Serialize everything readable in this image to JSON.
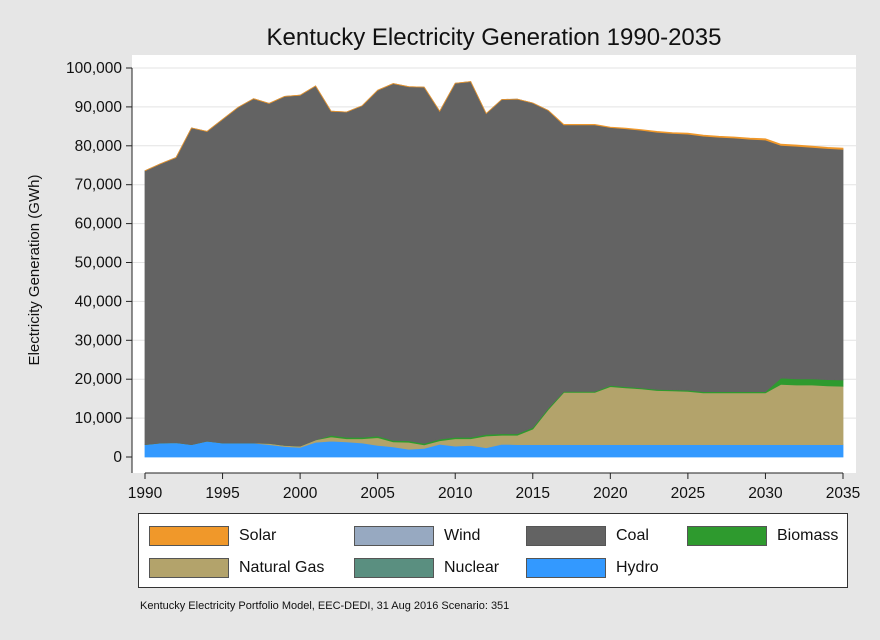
{
  "chart_data": {
    "type": "area",
    "stacked": true,
    "title": "Kentucky Electricity Generation 1990-2035",
    "xlabel": "",
    "ylabel": "Electricity Generation (GWh)",
    "xlim": [
      1990,
      2035
    ],
    "ylim": [
      0,
      100000
    ],
    "y_ticks": [
      0,
      10000,
      20000,
      30000,
      40000,
      50000,
      60000,
      70000,
      80000,
      90000,
      100000
    ],
    "y_tick_labels": [
      "0",
      "10,000",
      "20,000",
      "30,000",
      "40,000",
      "50,000",
      "60,000",
      "70,000",
      "80,000",
      "90,000",
      "100,000"
    ],
    "x_ticks": [
      1990,
      1995,
      2000,
      2005,
      2010,
      2015,
      2020,
      2025,
      2030,
      2035
    ],
    "x_tick_labels": [
      "1990",
      "1995",
      "2000",
      "2005",
      "2010",
      "2015",
      "2020",
      "2025",
      "2030",
      "2035"
    ],
    "grid": true,
    "x": [
      1990,
      1991,
      1992,
      1993,
      1994,
      1995,
      1996,
      1997,
      1998,
      1999,
      2000,
      2001,
      2002,
      2003,
      2004,
      2005,
      2006,
      2007,
      2008,
      2009,
      2010,
      2011,
      2012,
      2013,
      2014,
      2015,
      2016,
      2017,
      2018,
      2019,
      2020,
      2021,
      2022,
      2023,
      2024,
      2025,
      2026,
      2027,
      2028,
      2029,
      2030,
      2031,
      2032,
      2033,
      2034,
      2035
    ],
    "series": [
      {
        "name": "Hydro",
        "color": "#3399ff",
        "values": [
          3200,
          3600,
          3700,
          3200,
          4100,
          3600,
          3600,
          3600,
          3200,
          2700,
          2500,
          3800,
          4100,
          3900,
          3600,
          3000,
          2600,
          2000,
          2200,
          3300,
          2800,
          3000,
          2400,
          3300,
          3200,
          3200,
          3200,
          3200,
          3200,
          3200,
          3200,
          3200,
          3200,
          3200,
          3200,
          3200,
          3200,
          3200,
          3200,
          3200,
          3200,
          3200,
          3200,
          3200,
          3200,
          3200
        ]
      },
      {
        "name": "Nuclear",
        "color": "#5a8f80",
        "values": [
          0,
          0,
          0,
          0,
          0,
          0,
          0,
          0,
          0,
          0,
          0,
          0,
          0,
          0,
          0,
          0,
          0,
          0,
          0,
          0,
          0,
          0,
          0,
          0,
          0,
          0,
          0,
          0,
          0,
          0,
          0,
          0,
          0,
          0,
          0,
          0,
          0,
          0,
          0,
          0,
          0,
          0,
          0,
          0,
          0,
          0
        ]
      },
      {
        "name": "Natural Gas",
        "color": "#b3a36b",
        "values": [
          0,
          0,
          0,
          0,
          0,
          0,
          0,
          0,
          300,
          300,
          300,
          600,
          1100,
          800,
          1100,
          2000,
          1300,
          1800,
          900,
          900,
          1900,
          1700,
          3000,
          2300,
          2400,
          4000,
          9000,
          13400,
          13400,
          13400,
          14900,
          14600,
          14300,
          13900,
          13800,
          13700,
          13300,
          13300,
          13300,
          13300,
          13300,
          15500,
          15300,
          15300,
          15100,
          15000
        ]
      },
      {
        "name": "Biomass",
        "color": "#2e9a2e",
        "values": [
          0,
          0,
          0,
          0,
          0,
          0,
          0,
          0,
          0,
          0,
          0,
          0,
          400,
          400,
          400,
          400,
          400,
          400,
          400,
          400,
          400,
          400,
          400,
          400,
          400,
          400,
          400,
          300,
          300,
          300,
          300,
          300,
          300,
          300,
          300,
          300,
          300,
          300,
          300,
          300,
          300,
          1600,
          1600,
          1600,
          1600,
          1600
        ]
      },
      {
        "name": "Coal",
        "color": "#636363",
        "values": [
          70400,
          71800,
          73300,
          81400,
          79600,
          83200,
          86300,
          88500,
          87400,
          89700,
          90200,
          91000,
          83300,
          83600,
          85200,
          88900,
          91700,
          91000,
          91600,
          84300,
          91000,
          91400,
          82500,
          85900,
          86000,
          83400,
          76500,
          68500,
          68500,
          68500,
          66300,
          66300,
          66200,
          66100,
          65900,
          65800,
          65700,
          65400,
          65200,
          64900,
          64700,
          59800,
          59800,
          59500,
          59400,
          59300
        ]
      },
      {
        "name": "Wind",
        "color": "#97a9c1",
        "values": [
          0,
          0,
          0,
          0,
          0,
          0,
          0,
          0,
          0,
          0,
          0,
          0,
          0,
          0,
          0,
          0,
          0,
          0,
          0,
          0,
          0,
          0,
          0,
          0,
          0,
          0,
          0,
          0,
          0,
          0,
          0,
          0,
          0,
          0,
          0,
          0,
          0,
          0,
          0,
          0,
          0,
          0,
          0,
          0,
          0,
          0
        ]
      },
      {
        "name": "Solar",
        "color": "#f0982a",
        "values": [
          0,
          0,
          0,
          0,
          0,
          0,
          0,
          0,
          0,
          0,
          0,
          0,
          0,
          0,
          0,
          0,
          0,
          0,
          0,
          0,
          0,
          0,
          0,
          0,
          0,
          0,
          0,
          100,
          100,
          100,
          100,
          150,
          150,
          200,
          200,
          250,
          250,
          250,
          250,
          250,
          300,
          300,
          300,
          300,
          300,
          300
        ]
      }
    ],
    "legend": {
      "position": "bottom",
      "order": [
        "Solar",
        "Wind",
        "Coal",
        "Biomass",
        "Natural Gas",
        "Nuclear",
        "Hydro"
      ]
    },
    "note": "Kentucky Electricity Portfolio Model, EEC-DEDI, 31 Aug 2016 Scenario: 351"
  }
}
